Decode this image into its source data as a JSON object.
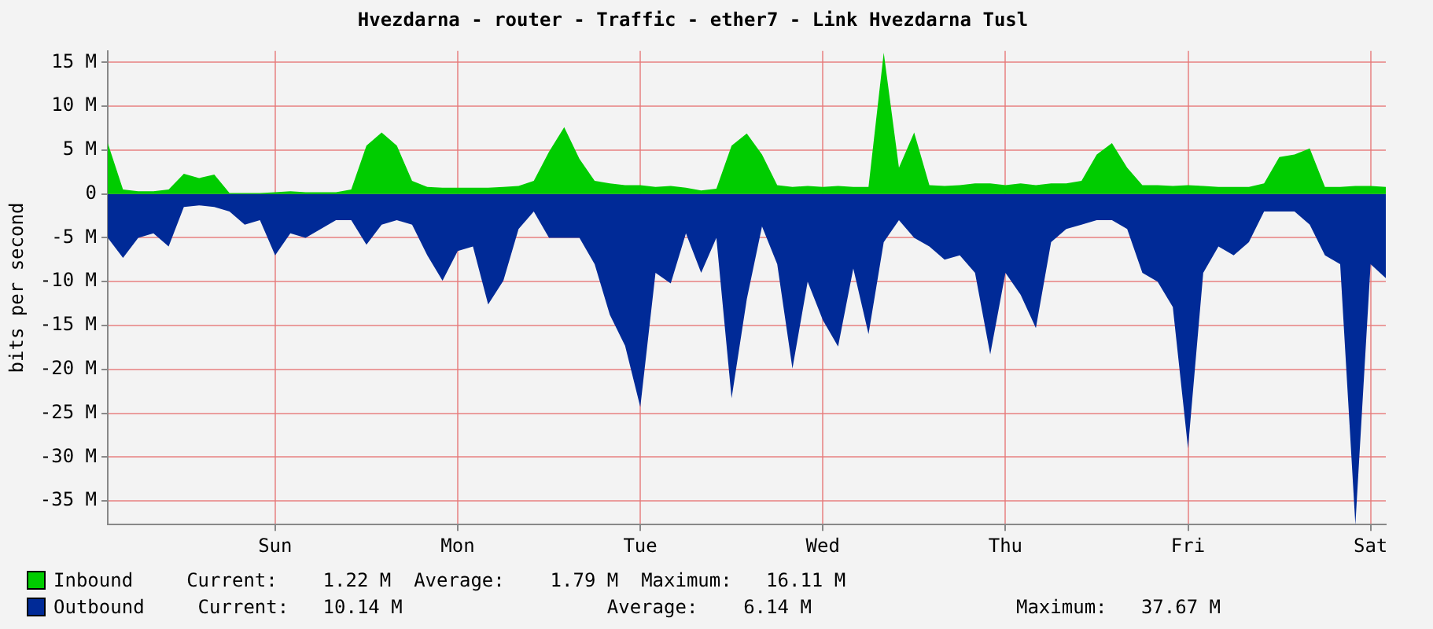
{
  "chart_data": {
    "type": "area",
    "title": "Hvezdarna - router - Traffic - ether7 - Link Hvezdarna Tusl",
    "ylabel": "bits per second",
    "categories": [
      null,
      null,
      null,
      null,
      null,
      null,
      null,
      null,
      null,
      null,
      null,
      "Sun",
      null,
      null,
      null,
      null,
      null,
      null,
      null,
      null,
      null,
      null,
      null,
      "Mon",
      null,
      null,
      null,
      null,
      null,
      null,
      null,
      null,
      null,
      null,
      null,
      "Tue",
      null,
      null,
      null,
      null,
      null,
      null,
      null,
      null,
      null,
      null,
      null,
      "Wed",
      null,
      null,
      null,
      null,
      null,
      null,
      null,
      null,
      null,
      null,
      null,
      "Thu",
      null,
      null,
      null,
      null,
      null,
      null,
      null,
      null,
      null,
      null,
      null,
      "Fri",
      null,
      null,
      null,
      null,
      null,
      null,
      null,
      null,
      null,
      null,
      null,
      "Sat",
      null
    ],
    "ylim": [
      -37.7,
      16.3
    ],
    "yticks": [
      {
        "value": -35,
        "label": "-35 M"
      },
      {
        "value": -30,
        "label": "-30 M"
      },
      {
        "value": -25,
        "label": "-25 M"
      },
      {
        "value": -20,
        "label": "-20 M"
      },
      {
        "value": -15,
        "label": "-15 M"
      },
      {
        "value": -10,
        "label": "-10 M"
      },
      {
        "value": -5,
        "label": "-5 M"
      },
      {
        "value": 0,
        "label": "0"
      },
      {
        "value": 5,
        "label": "5 M"
      },
      {
        "value": 10,
        "label": "10 M"
      },
      {
        "value": 15,
        "label": "15 M"
      }
    ],
    "grid": true,
    "legend": "bottom",
    "annotations": [
      "Current:    1.22 M  Average:    1.79 M  Maximum:   16.11 M",
      "Current:   10.14 M                  Average:    6.14 M                  Maximum:   37.67 M"
    ],
    "series": [
      {
        "name": "Inbound",
        "color": "#00cc00",
        "values": [
          5.8,
          0.5,
          0.3,
          0.3,
          0.5,
          2.3,
          1.8,
          2.2,
          0.1,
          0.1,
          0.1,
          0.2,
          0.3,
          0.2,
          0.2,
          0.2,
          0.5,
          5.5,
          7.0,
          5.5,
          1.5,
          0.8,
          0.7,
          0.7,
          0.7,
          0.7,
          0.8,
          0.9,
          1.5,
          4.8,
          7.6,
          4.0,
          1.5,
          1.2,
          1.0,
          1.0,
          0.8,
          0.9,
          0.7,
          0.4,
          0.6,
          5.5,
          6.9,
          4.5,
          1.0,
          0.8,
          0.9,
          0.8,
          0.9,
          0.8,
          0.8,
          16.1,
          3.0,
          7.0,
          1.0,
          0.9,
          1.0,
          1.2,
          1.2,
          1.0,
          1.2,
          1.0,
          1.2,
          1.2,
          1.5,
          4.5,
          5.8,
          3.0,
          1.0,
          1.0,
          0.9,
          1.0,
          0.9,
          0.8,
          0.8,
          0.8,
          1.2,
          4.2,
          4.5,
          5.2,
          0.8,
          0.8,
          0.9,
          0.9,
          0.8
        ]
      },
      {
        "name": "Outbound",
        "color": "#002a97",
        "values": [
          -5.0,
          -7.3,
          -5.0,
          -4.5,
          -6.0,
          -1.5,
          -1.3,
          -1.5,
          -2.0,
          -3.5,
          -3.0,
          -7.0,
          -4.5,
          -5.0,
          -4.0,
          -3.0,
          -3.0,
          -5.8,
          -3.5,
          -3.0,
          -3.5,
          -7.0,
          -9.9,
          -6.5,
          -6.0,
          -12.6,
          -9.9,
          -4.0,
          -2.0,
          -5.0,
          -5.0,
          -5.0,
          -8.0,
          -13.8,
          -17.3,
          -24.3,
          -9.0,
          -10.2,
          -4.5,
          -9.0,
          -5.0,
          -23.3,
          -12.0,
          -3.7,
          -8.0,
          -19.9,
          -10.0,
          -14.4,
          -17.4,
          -8.5,
          -16.0,
          -5.5,
          -3.0,
          -5.0,
          -6.0,
          -7.5,
          -7.0,
          -9.0,
          -18.3,
          -9.0,
          -11.5,
          -15.3,
          -5.5,
          -4.0,
          -3.5,
          -3.0,
          -3.0,
          -4.0,
          -9.0,
          -10.0,
          -12.9,
          -29.0,
          -9.0,
          -6.0,
          -7.0,
          -5.5,
          -2.0,
          -2.0,
          -2.0,
          -3.5,
          -7.0,
          -8.0,
          -37.7,
          -8.0,
          -9.6
        ]
      }
    ]
  }
}
